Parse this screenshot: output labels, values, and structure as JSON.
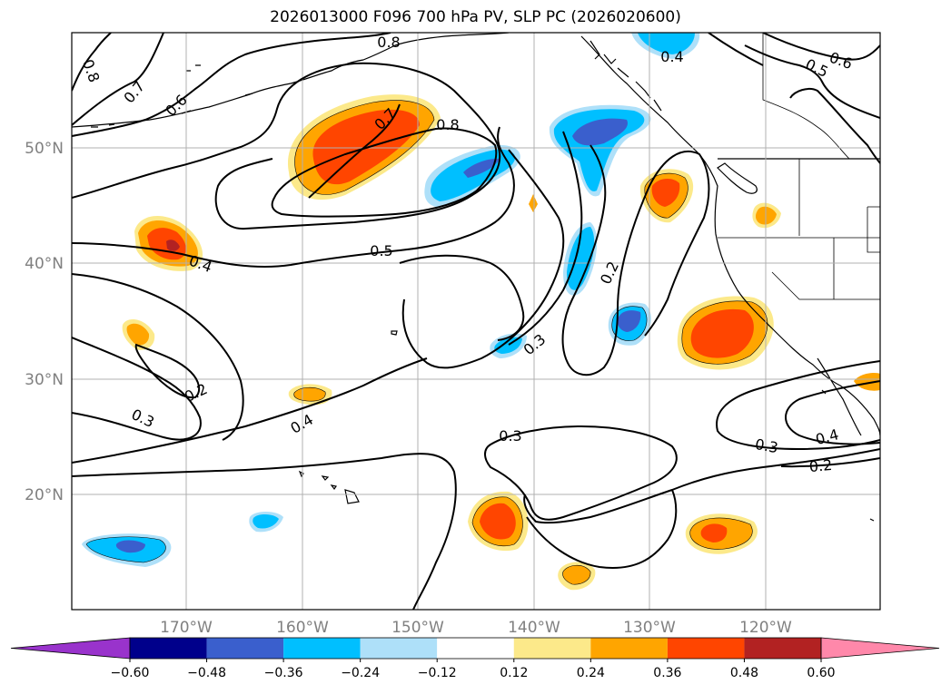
{
  "title": "2026013000 F096 700 hPa PV, SLP PC (2026020600)",
  "lat_labels": [
    "50°N",
    "40°N",
    "30°N",
    "20°N"
  ],
  "lon_labels": [
    "170°W",
    "160°W",
    "150°W",
    "140°W",
    "130°W",
    "120°W"
  ],
  "colorbar": {
    "tick_labels": [
      "−0.60",
      "−0.48",
      "−0.36",
      "−0.24",
      "−0.12",
      "0.12",
      "0.24",
      "0.36",
      "0.48",
      "0.60"
    ],
    "colors": [
      "#9933cc",
      "#00008b",
      "#3a5fcd",
      "#00bfff",
      "#aee0f9",
      "#ffffff",
      "#fce98a",
      "#ffa500",
      "#ff4500",
      "#b22222",
      "#ff88aa"
    ]
  },
  "contour_labels": [
    "0.8",
    "0.7",
    "0.6",
    "0.7",
    "0.8",
    "0.4",
    "0.5",
    "0.2",
    "0.3",
    "0.4",
    "0.3",
    "0.3",
    "0.2",
    "0.4",
    "0.3",
    "0.2",
    "0.5",
    "0.6",
    "0.4",
    "0.8"
  ]
}
